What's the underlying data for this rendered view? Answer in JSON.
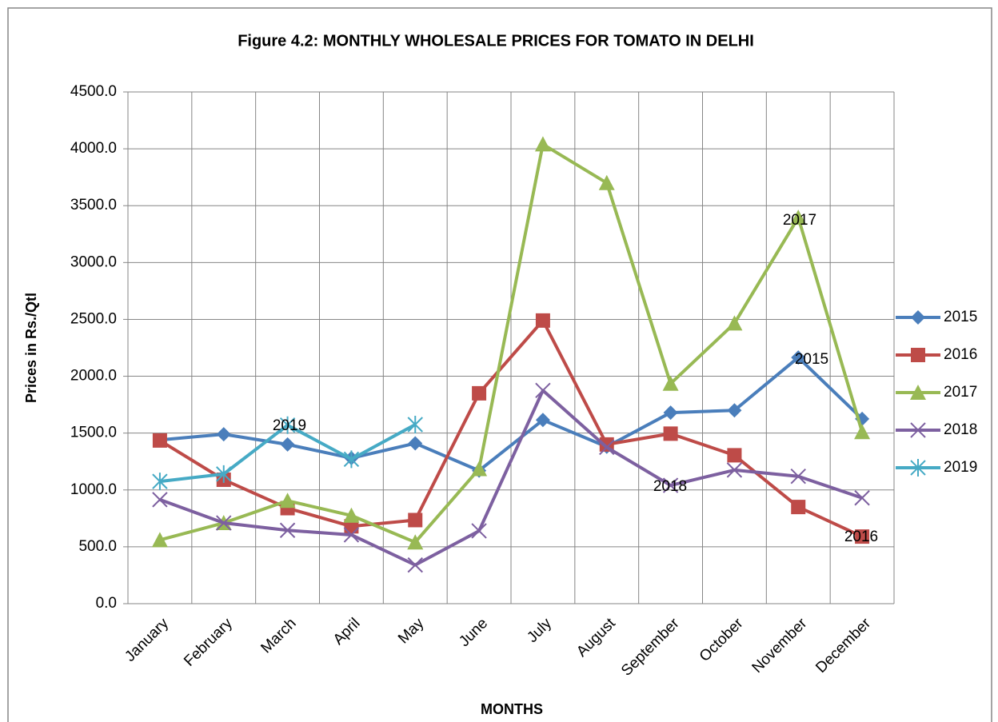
{
  "chart_data": {
    "type": "line",
    "title": "Figure 4.2: MONTHLY WHOLESALE PRICES FOR TOMATO IN DELHI",
    "x_label": "MONTHS",
    "y_label": "Prices in Rs./Qtl",
    "categories": [
      "January",
      "February",
      "March",
      "April",
      "May",
      "June",
      "July",
      "August",
      "September",
      "October",
      "November",
      "December"
    ],
    "series": [
      {
        "name": "2015",
        "color": "#4a7ebb",
        "marker": "diamond",
        "values": [
          1440,
          1490,
          1400,
          1280,
          1410,
          1170,
          1615,
          1380,
          1680,
          1700,
          2165,
          1625
        ]
      },
      {
        "name": "2016",
        "color": "#be4b48",
        "marker": "square",
        "values": [
          1435,
          1090,
          840,
          680,
          735,
          1850,
          2490,
          1400,
          1495,
          1305,
          850,
          590
        ]
      },
      {
        "name": "2017",
        "color": "#98b954",
        "marker": "triangle",
        "values": [
          560,
          710,
          905,
          775,
          540,
          1185,
          4040,
          3700,
          1935,
          2465,
          3395,
          1510
        ]
      },
      {
        "name": "2018",
        "color": "#7d60a0",
        "marker": "x",
        "values": [
          915,
          710,
          645,
          605,
          340,
          640,
          1875,
          1375,
          1040,
          1175,
          1120,
          930
        ]
      },
      {
        "name": "2019",
        "color": "#46aac5",
        "marker": "star",
        "values": [
          1075,
          1140,
          1570,
          1270,
          1575,
          null,
          null,
          null,
          null,
          null,
          null,
          null
        ]
      }
    ],
    "annotations": [
      "2019",
      "2015",
      "2017",
      "2018",
      "2016"
    ],
    "ylim": [
      0,
      4500
    ],
    "yticks": [
      {
        "value": 0,
        "label": "0.0"
      },
      {
        "value": 500,
        "label": "500.0"
      },
      {
        "value": 1000,
        "label": "1000.0"
      },
      {
        "value": 1500,
        "label": "1500.0"
      },
      {
        "value": 2000,
        "label": "2000.0"
      },
      {
        "value": 2500,
        "label": "2500.0"
      },
      {
        "value": 3000,
        "label": "3000.0"
      },
      {
        "value": 3500,
        "label": "3500.0"
      },
      {
        "value": 4000,
        "label": "4000.0"
      },
      {
        "value": 4500,
        "label": "4500.0"
      }
    ],
    "grid": true,
    "legend": "right"
  }
}
